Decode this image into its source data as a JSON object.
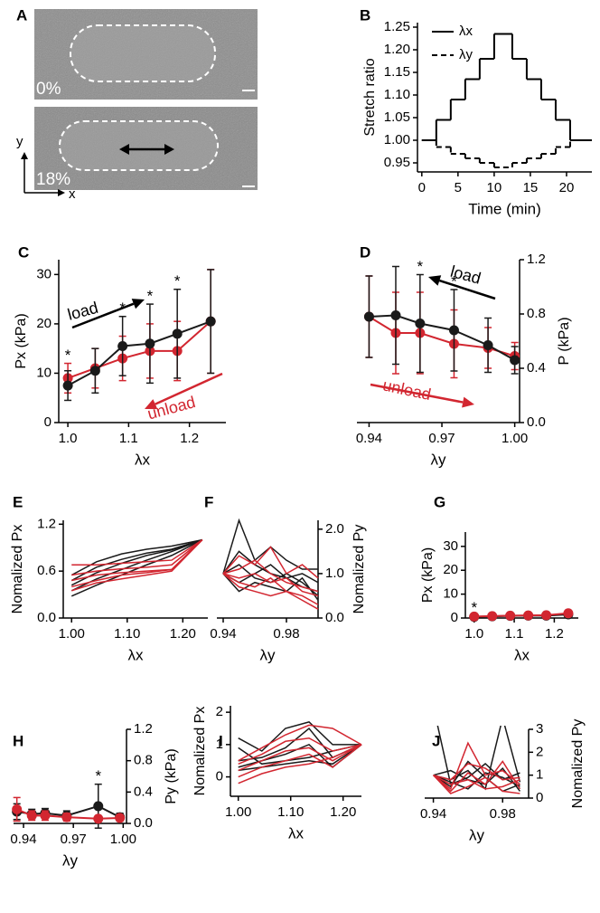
{
  "panel_labels": [
    "A",
    "B",
    "C",
    "D",
    "E",
    "F",
    "G",
    "H",
    "I",
    "J"
  ],
  "images": {
    "labels": [
      "0%",
      "18%"
    ],
    "axis_labels": [
      "y",
      "x"
    ]
  },
  "chart_data": [
    {
      "type": "line",
      "drawstyle": "steps-post",
      "x_label": "Time (min)",
      "y_label": "Stretch ratio",
      "x": [
        0,
        2,
        4,
        6,
        8,
        10,
        12.5,
        14.5,
        16.5,
        18.5,
        20.5
      ],
      "xlim": [
        -0.6,
        23.5
      ],
      "ylim": [
        0.93,
        1.26
      ],
      "xticks": [
        0,
        5,
        10,
        15,
        20
      ],
      "yticks": [
        0.95,
        {
          "value": 1,
          "label": "1.00"
        },
        1.05,
        {
          "value": 1.1,
          "label": "1.10"
        },
        1.15,
        {
          "value": 1.2,
          "label": "1.20"
        },
        1.25
      ],
      "legend": "upper left",
      "series": [
        {
          "name": "λx",
          "color": "#000000",
          "values": [
            1,
            1.045,
            1.09,
            1.135,
            1.18,
            1.235,
            1.18,
            1.135,
            1.09,
            1.045,
            1
          ]
        },
        {
          "name": "λy",
          "color": "#000000",
          "dash": true,
          "values": [
            1,
            0.985,
            0.97,
            0.96,
            0.95,
            0.94,
            0.95,
            0.96,
            0.97,
            0.985,
            1
          ]
        }
      ]
    },
    {
      "type": "line",
      "markers": true,
      "x_label": "λx",
      "y_label": "Px (kPa)",
      "x": [
        1.0,
        1.045,
        1.09,
        1.135,
        1.18,
        1.235
      ],
      "xlim": [
        0.985,
        1.26
      ],
      "ylim": [
        0,
        33
      ],
      "xticks": [
        {
          "value": 1,
          "label": "1.0"
        },
        1.1,
        1.2
      ],
      "yticks": [
        0,
        10,
        20,
        30
      ],
      "series": [
        {
          "color": "#d22630",
          "values": [
            9,
            11,
            13,
            14.5,
            14.5,
            20.5
          ],
          "errors": [
            3,
            4,
            4.5,
            5.5,
            6,
            10.5
          ]
        },
        {
          "color": "#1a1a1a",
          "values": [
            7.5,
            10.5,
            15.5,
            16,
            18,
            20.5
          ],
          "errors": [
            3,
            4.5,
            6,
            8,
            9,
            10.5
          ]
        }
      ],
      "significance": [
        {
          "text": "*",
          "x": 1.0
        },
        {
          "text": "*",
          "x": 1.09
        },
        {
          "text": "*",
          "x": 1.135
        },
        {
          "text": "*",
          "x": 1.18
        }
      ],
      "annotations": [
        {
          "text": "load",
          "color": "#000000"
        },
        {
          "text": "unload",
          "color": "#d22630"
        }
      ]
    },
    {
      "type": "line",
      "markers": true,
      "x_label": "λy",
      "y_label": "P (kPa)",
      "x": [
        0.94,
        0.951,
        0.961,
        0.975,
        0.989,
        1.0
      ],
      "xlim": [
        0.935,
        1.002
      ],
      "ylim": [
        0,
        1.2
      ],
      "xticks": [
        0.94,
        0.97,
        {
          "value": 1,
          "label": "1.00"
        }
      ],
      "yticks": [
        {
          "value": 0,
          "label": "0.0"
        },
        0.4,
        0.8,
        1.2
      ],
      "series": [
        {
          "color": "#d22630",
          "values": [
            0.78,
            0.66,
            0.66,
            0.58,
            0.55,
            0.49
          ],
          "errors": [
            0.3,
            0.3,
            0.3,
            0.25,
            0.15,
            0.1
          ]
        },
        {
          "color": "#1a1a1a",
          "values": [
            0.78,
            0.79,
            0.73,
            0.68,
            0.57,
            0.46
          ],
          "errors": [
            0.3,
            0.36,
            0.36,
            0.3,
            0.2,
            0.1
          ]
        }
      ],
      "significance": [
        {
          "text": "*",
          "x": 0.961
        },
        {
          "text": "*",
          "x": 0.975
        }
      ],
      "annotations": [
        {
          "text": "load",
          "color": "#000000"
        },
        {
          "text": "unload",
          "color": "#d22630"
        }
      ]
    },
    {
      "type": "line",
      "x_label": "λx",
      "y_label": "Nomalized Px",
      "x": [
        1.0,
        1.045,
        1.09,
        1.135,
        1.18,
        1.235
      ],
      "xlim": [
        0.985,
        1.245
      ],
      "ylim": [
        0,
        1.25
      ],
      "xticks": [
        {
          "value": 1,
          "label": "1.00"
        },
        {
          "value": 1.1,
          "label": "1.10"
        },
        {
          "value": 1.2,
          "label": "1.20"
        }
      ],
      "yticks": [
        {
          "value": 0,
          "label": "0.0"
        },
        0.6,
        1.2
      ],
      "series": [
        {
          "color": "#1a1a1a",
          "values": [
            0.55,
            0.72,
            0.82,
            0.88,
            0.92,
            1.0
          ]
        },
        {
          "color": "#1a1a1a",
          "values": [
            0.48,
            0.65,
            0.75,
            0.83,
            0.88,
            1.0
          ]
        },
        {
          "color": "#1a1a1a",
          "values": [
            0.42,
            0.58,
            0.7,
            0.8,
            0.87,
            1.0
          ]
        },
        {
          "color": "#1a1a1a",
          "values": [
            0.35,
            0.5,
            0.62,
            0.74,
            0.85,
            1.0
          ]
        },
        {
          "color": "#1a1a1a",
          "values": [
            0.28,
            0.42,
            0.55,
            0.68,
            0.8,
            1.0
          ]
        },
        {
          "color": "#d22630",
          "values": [
            0.68,
            0.68,
            0.7,
            0.72,
            0.74,
            1.0
          ]
        },
        {
          "color": "#d22630",
          "values": [
            0.55,
            0.6,
            0.63,
            0.65,
            0.68,
            1.0
          ]
        },
        {
          "color": "#d22630",
          "values": [
            0.48,
            0.55,
            0.58,
            0.6,
            0.62,
            1.0
          ]
        },
        {
          "color": "#d22630",
          "values": [
            0.4,
            0.48,
            0.55,
            0.58,
            0.62,
            1.0
          ]
        },
        {
          "color": "#d22630",
          "values": [
            0.35,
            0.45,
            0.5,
            0.55,
            0.6,
            1.0
          ]
        }
      ]
    },
    {
      "type": "line",
      "x_label": "λy",
      "y_label": "Nomalized Py",
      "x": [
        0.94,
        0.95,
        0.96,
        0.97,
        0.98,
        0.99,
        1.0
      ],
      "xlim": [
        0.936,
        1.0
      ],
      "ylim": [
        0,
        2.2
      ],
      "xticks": [
        0.94,
        0.98
      ],
      "yticks": [
        {
          "value": 0,
          "label": "0.0"
        },
        {
          "value": 1,
          "label": "1.0"
        },
        {
          "value": 2,
          "label": "2.0"
        }
      ],
      "series": [
        {
          "color": "#1a1a1a",
          "values": [
            1,
            2.2,
            1.3,
            1.6,
            1.3,
            1.1,
            1.1
          ]
        },
        {
          "color": "#1a1a1a",
          "values": [
            1,
            1.5,
            1.2,
            1.0,
            0.9,
            1.0,
            0.8
          ]
        },
        {
          "color": "#1a1a1a",
          "values": [
            1,
            0.8,
            1.0,
            1.2,
            0.9,
            0.7,
            0.6
          ]
        },
        {
          "color": "#1a1a1a",
          "values": [
            1,
            1.2,
            0.9,
            0.8,
            1.0,
            0.8,
            0.5
          ]
        },
        {
          "color": "#1a1a1a",
          "values": [
            1,
            0.6,
            0.8,
            0.7,
            0.6,
            0.9,
            0.4
          ]
        },
        {
          "color": "#d22630",
          "values": [
            1,
            1.4,
            1.2,
            1.6,
            1.0,
            1.2,
            0.9
          ]
        },
        {
          "color": "#d22630",
          "values": [
            1,
            1.1,
            1.3,
            1.0,
            0.8,
            0.7,
            0.6
          ]
        },
        {
          "color": "#d22630",
          "values": [
            1,
            0.9,
            1.0,
            0.8,
            0.9,
            0.6,
            0.5
          ]
        },
        {
          "color": "#d22630",
          "values": [
            1,
            0.8,
            0.7,
            0.9,
            0.6,
            0.5,
            0.3
          ]
        },
        {
          "color": "#d22630",
          "values": [
            1,
            0.7,
            0.6,
            0.5,
            0.6,
            0.4,
            0.2
          ]
        }
      ]
    },
    {
      "type": "line",
      "markers": true,
      "x_label": "λx",
      "y_label": "Px (kPa)",
      "x": [
        1.0,
        1.045,
        1.09,
        1.135,
        1.18,
        1.235
      ],
      "xlim": [
        0.978,
        1.26
      ],
      "ylim": [
        0,
        36
      ],
      "xticks": [
        {
          "value": 1,
          "label": "1.0"
        },
        1.1,
        1.2
      ],
      "yticks": [
        0,
        10,
        20,
        30
      ],
      "series": [
        {
          "color": "#1a1a1a",
          "values": [
            0.5,
            0.7,
            0.9,
            1.0,
            1.0,
            1.5
          ],
          "errors": [
            0.4,
            0.4,
            0.5,
            0.5,
            0.5,
            0.8
          ]
        },
        {
          "color": "#d22630",
          "values": [
            0.6,
            0.8,
            1.0,
            1.1,
            1.2,
            2.0
          ],
          "errors": [
            0.4,
            0.4,
            0.5,
            0.5,
            0.6,
            1.0
          ]
        }
      ],
      "significance": [
        {
          "text": "*",
          "x": 1.0
        }
      ]
    },
    {
      "type": "line",
      "markers": true,
      "x_label": "λy",
      "y_label": "Py (kPa)",
      "x": [
        0.936,
        0.945,
        0.953,
        0.966,
        0.985,
        0.998
      ],
      "xlim": [
        0.934,
        1.002
      ],
      "ylim": [
        0,
        1.2
      ],
      "xticks": [
        0.94,
        0.97,
        {
          "value": 1,
          "label": "1.00"
        }
      ],
      "yticks": [
        {
          "value": 0,
          "label": "0.0"
        },
        0.4,
        0.8,
        1.2
      ],
      "series": [
        {
          "color": "#1a1a1a",
          "values": [
            0.15,
            0.12,
            0.13,
            0.1,
            0.22,
            0.08
          ],
          "errors": [
            0.1,
            0.06,
            0.06,
            0.06,
            0.28,
            0.05
          ]
        },
        {
          "color": "#d22630",
          "values": [
            0.18,
            0.1,
            0.1,
            0.08,
            0.06,
            0.07
          ],
          "errors": [
            0.15,
            0.06,
            0.06,
            0.05,
            0.03,
            0.03
          ]
        }
      ],
      "significance": [
        {
          "text": "*",
          "x": 0.985
        }
      ]
    },
    {
      "type": "line",
      "x_label": "λx",
      "y_label": "Nomalized Px",
      "x": [
        1.0,
        1.045,
        1.09,
        1.135,
        1.18,
        1.235
      ],
      "xlim": [
        0.985,
        1.235
      ],
      "ylim": [
        -0.6,
        2.2
      ],
      "xticks": [
        {
          "value": 1,
          "label": "1.00"
        },
        {
          "value": 1.1,
          "label": "1.10"
        },
        {
          "value": 1.2,
          "label": "1.20"
        }
      ],
      "yticks": [
        0,
        1,
        2
      ],
      "series": [
        {
          "color": "#1a1a1a",
          "values": [
            1.2,
            0.8,
            1.5,
            1.7,
            1.0,
            1.0
          ]
        },
        {
          "color": "#1a1a1a",
          "values": [
            0.5,
            0.6,
            0.9,
            1.5,
            0.6,
            1.0
          ]
        },
        {
          "color": "#1a1a1a",
          "values": [
            0.3,
            0.5,
            0.7,
            1.0,
            0.3,
            1.0
          ]
        },
        {
          "color": "#1a1a1a",
          "values": [
            0.9,
            0.4,
            0.5,
            0.6,
            0.8,
            1.0
          ]
        },
        {
          "color": "#1a1a1a",
          "values": [
            0.2,
            0.3,
            0.4,
            0.5,
            0.4,
            1.0
          ]
        },
        {
          "color": "#d22630",
          "values": [
            0.5,
            0.9,
            1.3,
            1.6,
            1.5,
            1.0
          ]
        },
        {
          "color": "#d22630",
          "values": [
            0.4,
            0.7,
            1.1,
            1.2,
            0.8,
            1.0
          ]
        },
        {
          "color": "#d22630",
          "values": [
            0.2,
            0.5,
            0.8,
            0.9,
            0.5,
            1.0
          ]
        },
        {
          "color": "#d22630",
          "values": [
            0,
            0.3,
            0.5,
            0.7,
            0.3,
            1.0
          ]
        },
        {
          "color": "#d22630",
          "values": [
            -0.2,
            0.1,
            0.3,
            0.4,
            0.6,
            1.0
          ]
        }
      ]
    },
    {
      "type": "line",
      "x_label": "λy",
      "y_label": "Nomalized Py",
      "x": [
        0.94,
        0.95,
        0.96,
        0.97,
        0.98,
        0.99
      ],
      "xlim": [
        0.935,
        0.995
      ],
      "ylim": [
        0,
        3
      ],
      "xticks": [
        0.94,
        0.98
      ],
      "yticks": [
        0,
        1,
        2,
        3
      ],
      "series": [
        {
          "color": "#1a1a1a",
          "values": [
            1,
            0.8,
            1.2,
            0.4,
            3.5,
            0.7
          ]
        },
        {
          "color": "#1a1a1a",
          "values": [
            4,
            0.6,
            0.9,
            1.5,
            0.8,
            1.1
          ]
        },
        {
          "color": "#1a1a1a",
          "values": [
            1,
            0.5,
            1.6,
            0.9,
            0.3,
            0.6
          ]
        },
        {
          "color": "#1a1a1a",
          "values": [
            1,
            0.7,
            0.4,
            1.1,
            0.9,
            0.5
          ]
        },
        {
          "color": "#1a1a1a",
          "values": [
            1,
            1.2,
            0.8,
            0.6,
            1.3,
            0.3
          ]
        },
        {
          "color": "#d22630",
          "values": [
            1,
            0.4,
            2.4,
            1.0,
            1.2,
            0.6
          ]
        },
        {
          "color": "#d22630",
          "values": [
            1,
            0.8,
            1.5,
            1.3,
            0.8,
            0.9
          ]
        },
        {
          "color": "#d22630",
          "values": [
            1,
            0.3,
            1.1,
            0.6,
            1.6,
            0.4
          ]
        },
        {
          "color": "#d22630",
          "values": [
            1,
            0.6,
            0.8,
            0.4,
            0.5,
            0.8
          ]
        },
        {
          "color": "#d22630",
          "values": [
            1,
            0.2,
            0.5,
            0.9,
            0.3,
            0.2
          ]
        }
      ]
    }
  ]
}
